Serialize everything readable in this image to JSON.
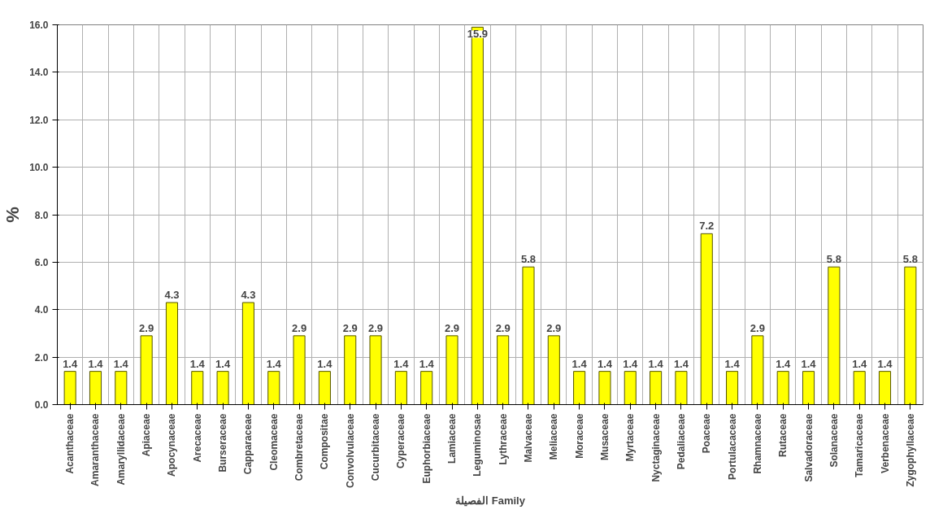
{
  "chart_data": {
    "type": "bar",
    "xlabel": "الفصيلة Family",
    "ylabel": "%",
    "categories": [
      "Acanthaceae",
      "Amaranthaceae",
      "Amaryllidaceae",
      "Apiaceae",
      "Apocynaceae",
      "Arecaceae",
      "Burseraceae",
      "Capparaceae",
      "Cleomaceae",
      "Combretaceae",
      "Compositae",
      "Convolvulaceae",
      "Cucurbitaceae",
      "Cyperaceae",
      "Euphorbiaceae",
      "Lamiaceae",
      "Leguminosae",
      "Lythraceae",
      "Malvaceae",
      "Meliaceae",
      "Moraceae",
      "Musaceae",
      "Myrtaceae",
      "Nyctaginaceae",
      "Pedaliaceae",
      "Poaceae",
      "Portulacaceae",
      "Rhamnaceae",
      "Rutaceae",
      "Salvadoraceae",
      "Solanaceae",
      "Tamaricaceae",
      "Verbenaceae",
      "Zygophyllaceae"
    ],
    "values": [
      1.4,
      1.4,
      1.4,
      2.9,
      4.3,
      1.4,
      1.4,
      4.3,
      1.4,
      2.9,
      1.4,
      2.9,
      2.9,
      1.4,
      1.4,
      2.9,
      15.9,
      2.9,
      5.8,
      2.9,
      1.4,
      1.4,
      1.4,
      1.4,
      1.4,
      7.2,
      1.4,
      2.9,
      1.4,
      1.4,
      5.8,
      1.4,
      1.4,
      5.8
    ],
    "color": "#ffff00",
    "ylim": [
      0,
      16
    ],
    "yticks": [
      {
        "value": 0,
        "label": "0.0"
      },
      {
        "value": 2,
        "label": "2.0"
      },
      {
        "value": 4,
        "label": "4.0"
      },
      {
        "value": 6,
        "label": "6.0"
      },
      {
        "value": 8,
        "label": "8.0"
      },
      {
        "value": 10,
        "label": "10.0"
      },
      {
        "value": 12,
        "label": "12.0"
      },
      {
        "value": 14,
        "label": "14.0"
      },
      {
        "value": 16,
        "label": "16.0"
      }
    ],
    "grid": true,
    "data_labels": true
  }
}
